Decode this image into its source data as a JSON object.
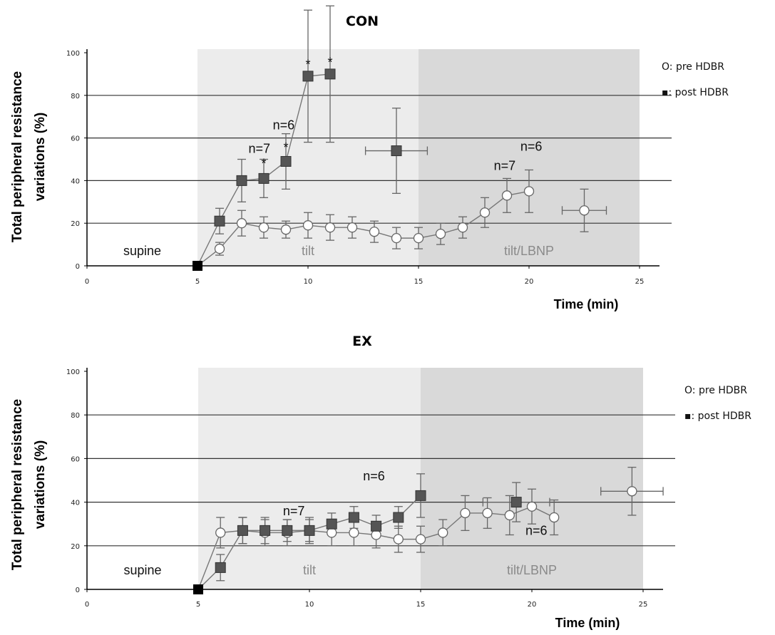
{
  "chart_data": [
    {
      "type": "line",
      "title": "CON",
      "ylabel_line1": "Total peripheral resistance",
      "ylabel_line2": "variations (%)",
      "xlabel": "Time (min)",
      "xlim": [
        0,
        25
      ],
      "ylim": [
        0,
        100
      ],
      "xticks": [
        "0",
        "5",
        "10",
        "15",
        "20",
        "25"
      ],
      "yticks": [
        "0",
        "20",
        "40",
        "60",
        "80",
        "100"
      ],
      "grid": "horizontal",
      "phases": [
        {
          "label": "supine",
          "x0": 0,
          "x1": 5,
          "color": "#ffffff"
        },
        {
          "label": "tilt",
          "x0": 5,
          "x1": 15,
          "color": "#ececec"
        },
        {
          "label": "tilt/LBNP",
          "x0": 15,
          "x1": 25,
          "color": "#d9d9d9"
        }
      ],
      "legend": [
        "O: pre HDBR",
        "▪: post HDBR"
      ],
      "series": [
        {
          "name": "O: pre HDBR",
          "marker": "open-circle",
          "x": [
            5,
            6,
            7,
            8,
            9,
            10,
            11,
            12,
            13,
            14,
            15,
            16,
            17,
            18,
            19,
            20
          ],
          "y": [
            0,
            8,
            20,
            18,
            17,
            19,
            18,
            18,
            16,
            13,
            13,
            15,
            18,
            25,
            33,
            35
          ],
          "err": [
            0,
            3,
            6,
            5,
            4,
            6,
            6,
            5,
            5,
            5,
            5,
            5,
            5,
            7,
            8,
            10
          ]
        },
        {
          "name": "▪: post HDBR",
          "marker": "filled-square",
          "x": [
            5,
            6,
            7,
            8,
            9,
            10,
            11
          ],
          "y": [
            0,
            21,
            40,
            41,
            49,
            89,
            90
          ],
          "err": [
            0,
            6,
            10,
            9,
            13,
            31,
            32
          ]
        }
      ],
      "isolated_points": [
        {
          "marker": "filled-square",
          "x": 14,
          "y": 54,
          "yerr": 20,
          "xerr": 1.4
        },
        {
          "marker": "open-circle",
          "x": 22.5,
          "y": 26,
          "yerr": 10,
          "xerr": 1
        }
      ],
      "annotations": [
        {
          "text": "*",
          "x": 8,
          "y": 46
        },
        {
          "text": "*",
          "x": 9,
          "y": 53.5
        },
        {
          "text": "*",
          "x": 10,
          "y": 92.5
        },
        {
          "text": "*",
          "x": 11,
          "y": 93.5
        },
        {
          "text": "n=7",
          "x": 7.8,
          "y": 53
        },
        {
          "text": "n=6",
          "x": 8.9,
          "y": 64
        },
        {
          "text": "n=7",
          "x": 18.9,
          "y": 45
        },
        {
          "text": "n=6",
          "x": 20.1,
          "y": 54
        }
      ]
    },
    {
      "type": "line",
      "title": "EX",
      "ylabel_line1": "Total peripheral resistance",
      "ylabel_line2": "variations (%)",
      "xlabel": "Time (min)",
      "xlim": [
        0,
        25
      ],
      "ylim": [
        0,
        100
      ],
      "xticks": [
        "0",
        "5",
        "10",
        "15",
        "20",
        "25"
      ],
      "yticks": [
        "0",
        "20",
        "40",
        "60",
        "80",
        "100"
      ],
      "grid": "horizontal",
      "phases": [
        {
          "label": "supine",
          "x0": 0,
          "x1": 5,
          "color": "#ffffff"
        },
        {
          "label": "tilt",
          "x0": 5,
          "x1": 15,
          "color": "#ececec"
        },
        {
          "label": "tilt/LBNP",
          "x0": 15,
          "x1": 25,
          "color": "#d9d9d9"
        }
      ],
      "legend": [
        "O: pre HDBR",
        "▪: post HDBR"
      ],
      "series": [
        {
          "name": "O: pre HDBR",
          "marker": "open-circle",
          "x": [
            5,
            6,
            7,
            8,
            9,
            10,
            11,
            12,
            13,
            14,
            15,
            16,
            17,
            18,
            19,
            20,
            21
          ],
          "y": [
            0,
            26,
            27,
            26,
            26,
            27,
            26,
            26,
            25,
            23,
            23,
            26,
            35,
            35,
            34,
            38,
            33
          ],
          "err": [
            0,
            7,
            6,
            6,
            6,
            6,
            6,
            6,
            6,
            6,
            6,
            6,
            8,
            7,
            9,
            8,
            8
          ]
        },
        {
          "name": "▪: post HDBR",
          "marker": "filled-square",
          "x": [
            5,
            6,
            7,
            8,
            9,
            10,
            11,
            12,
            13,
            14,
            15
          ],
          "y": [
            0,
            10,
            27,
            27,
            27,
            27,
            30,
            33,
            29,
            33,
            43
          ],
          "err": [
            0,
            6,
            6,
            6,
            5,
            5,
            5,
            5,
            5,
            5,
            10
          ]
        }
      ],
      "isolated_points": [
        {
          "marker": "filled-square",
          "x": 19.3,
          "y": 40,
          "yerr": 9,
          "xerr": 1.5
        },
        {
          "marker": "open-circle",
          "x": 24.5,
          "y": 45,
          "yerr": 11,
          "xerr": 1.4
        }
      ],
      "annotations": [
        {
          "text": "n=7",
          "x": 9.3,
          "y": 34
        },
        {
          "text": "n=6",
          "x": 12.9,
          "y": 50
        },
        {
          "text": "n=6",
          "x": 20.2,
          "y": 25
        }
      ]
    }
  ]
}
